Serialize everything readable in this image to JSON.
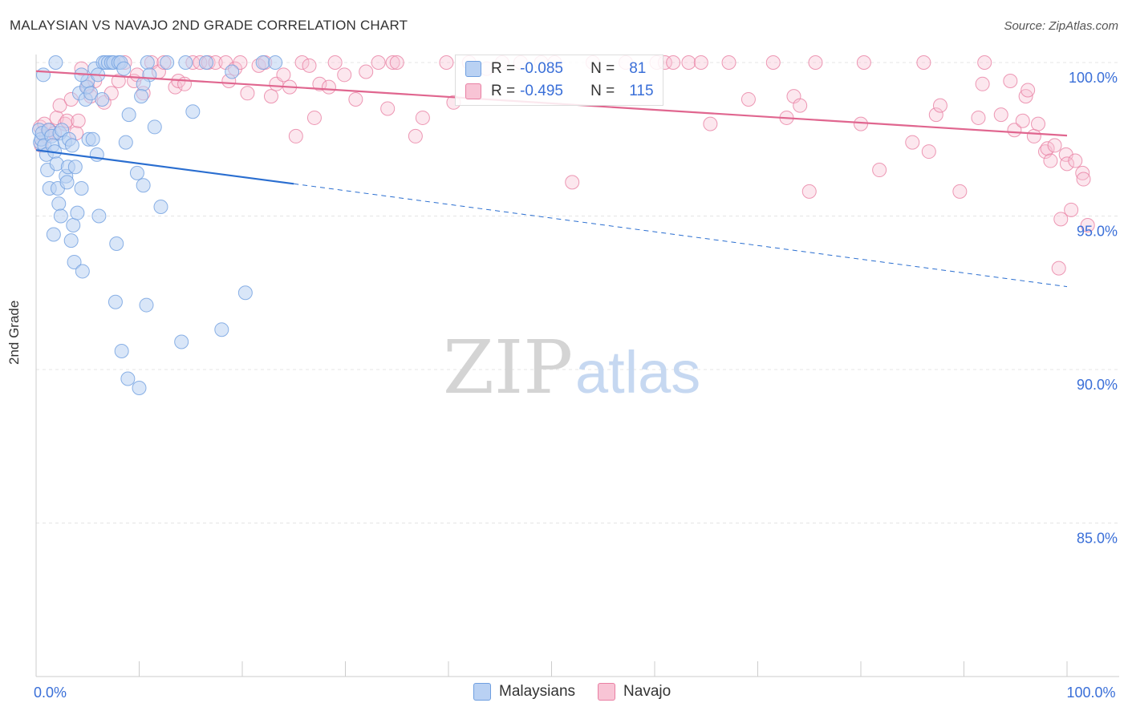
{
  "title": "MALAYSIAN VS NAVAJO 2ND GRADE CORRELATION CHART",
  "source": "Source: ZipAtlas.com",
  "watermark": {
    "zip": "ZIP",
    "atlas": "atlas"
  },
  "colors": {
    "blue": "#6f9fe0",
    "blue_fill": "#b9d1f3",
    "blue_line": "#2a6ed0",
    "pink": "#e97fa3",
    "pink_fill": "#f8c4d5",
    "pink_line": "#e0668f",
    "axis_text": "#3a6fd8",
    "grid": "#e4e4e4"
  },
  "legend": {
    "rows": [
      {
        "r_label": "R =",
        "r_value": "-0.085",
        "n_label": "N =",
        "n_value": "81",
        "series": "Malaysians"
      },
      {
        "r_label": "R =",
        "r_value": "-0.495",
        "n_label": "N =",
        "n_value": "115",
        "series": "Navajo"
      }
    ]
  },
  "bottom_legend": [
    "Malaysians",
    "Navajo"
  ],
  "chart_data": {
    "type": "scatter",
    "title": "MALAYSIAN VS NAVAJO 2ND GRADE CORRELATION CHART",
    "xlabel": "",
    "ylabel": "2nd Grade",
    "xlim": [
      0,
      100
    ],
    "ylim": [
      80.5,
      100.8
    ],
    "x_tick_labels": [
      {
        "value": 0,
        "label": "0.0%"
      },
      {
        "value": 100,
        "label": "100.0%"
      }
    ],
    "y_ticks": [
      {
        "value": 100,
        "label": "100.0%"
      },
      {
        "value": 95,
        "label": "95.0%"
      },
      {
        "value": 90,
        "label": "90.0%"
      },
      {
        "value": 85,
        "label": "85.0%"
      }
    ],
    "series": [
      {
        "name": "Malaysians",
        "r": -0.085,
        "n": 81,
        "trend": {
          "x0": 0,
          "y0": 97.15,
          "x1": 25,
          "y1": 96.05,
          "x_dash_end": 100,
          "y_dash_end": 92.7
        },
        "points": [
          [
            0.3,
            97.8
          ],
          [
            0.4,
            97.4
          ],
          [
            0.5,
            97.5
          ],
          [
            0.6,
            97.7
          ],
          [
            0.8,
            97.3
          ],
          [
            1.0,
            97.0
          ],
          [
            1.1,
            96.5
          ],
          [
            1.2,
            97.8
          ],
          [
            1.3,
            95.9
          ],
          [
            1.5,
            97.6
          ],
          [
            1.6,
            97.3
          ],
          [
            1.7,
            94.4
          ],
          [
            1.8,
            97.1
          ],
          [
            2.0,
            96.7
          ],
          [
            2.1,
            95.9
          ],
          [
            2.2,
            95.4
          ],
          [
            2.3,
            97.7
          ],
          [
            2.4,
            95.0
          ],
          [
            2.5,
            97.8
          ],
          [
            2.8,
            97.4
          ],
          [
            2.9,
            96.3
          ],
          [
            3.0,
            96.1
          ],
          [
            3.1,
            96.6
          ],
          [
            3.2,
            97.5
          ],
          [
            3.4,
            94.2
          ],
          [
            3.5,
            97.3
          ],
          [
            3.6,
            94.7
          ],
          [
            3.7,
            93.5
          ],
          [
            3.8,
            96.6
          ],
          [
            4.0,
            95.1
          ],
          [
            4.2,
            99.0
          ],
          [
            4.4,
            95.9
          ],
          [
            4.5,
            93.2
          ],
          [
            4.8,
            98.8
          ],
          [
            4.9,
            99.2
          ],
          [
            5.0,
            99.4
          ],
          [
            5.1,
            97.5
          ],
          [
            5.3,
            99.0
          ],
          [
            5.5,
            97.5
          ],
          [
            5.7,
            99.8
          ],
          [
            5.9,
            97.0
          ],
          [
            6.1,
            95.0
          ],
          [
            6.4,
            98.8
          ],
          [
            6.5,
            100.0
          ],
          [
            6.7,
            100.0
          ],
          [
            7.0,
            100.0
          ],
          [
            7.3,
            100.0
          ],
          [
            7.5,
            100.0
          ],
          [
            7.7,
            92.2
          ],
          [
            7.8,
            94.1
          ],
          [
            8.0,
            100.0
          ],
          [
            8.2,
            100.0
          ],
          [
            8.3,
            90.6
          ],
          [
            8.5,
            99.8
          ],
          [
            8.7,
            97.4
          ],
          [
            8.9,
            89.7
          ],
          [
            9.0,
            98.3
          ],
          [
            9.8,
            96.4
          ],
          [
            10.0,
            89.4
          ],
          [
            10.4,
            96.0
          ],
          [
            10.7,
            92.1
          ],
          [
            10.8,
            100.0
          ],
          [
            11.0,
            99.6
          ],
          [
            11.5,
            97.9
          ],
          [
            12.1,
            95.3
          ],
          [
            12.7,
            100.0
          ],
          [
            14.1,
            90.9
          ],
          [
            14.5,
            100.0
          ],
          [
            15.2,
            98.4
          ],
          [
            16.5,
            100.0
          ],
          [
            18.0,
            91.3
          ],
          [
            19.0,
            99.7
          ],
          [
            20.3,
            92.5
          ],
          [
            22.0,
            100.0
          ],
          [
            23.2,
            100.0
          ],
          [
            0.7,
            99.6
          ],
          [
            1.9,
            100.0
          ],
          [
            6.0,
            99.6
          ],
          [
            10.4,
            99.3
          ],
          [
            10.2,
            98.9
          ],
          [
            4.4,
            99.6
          ]
        ]
      },
      {
        "name": "Navajo",
        "r": -0.495,
        "n": 115,
        "trend": {
          "x0": 0,
          "y0": 99.72,
          "x1": 100,
          "y1": 97.62
        },
        "points": [
          [
            0.4,
            97.9
          ],
          [
            0.5,
            97.3
          ],
          [
            0.8,
            98.0
          ],
          [
            1.0,
            97.6
          ],
          [
            1.3,
            97.8
          ],
          [
            1.8,
            97.7
          ],
          [
            2.0,
            98.2
          ],
          [
            2.3,
            98.6
          ],
          [
            2.8,
            98.0
          ],
          [
            3.0,
            98.1
          ],
          [
            3.4,
            98.8
          ],
          [
            3.9,
            97.7
          ],
          [
            4.1,
            98.1
          ],
          [
            4.4,
            99.8
          ],
          [
            5.0,
            99.2
          ],
          [
            5.3,
            98.9
          ],
          [
            5.7,
            99.4
          ],
          [
            6.6,
            98.7
          ],
          [
            7.3,
            99.0
          ],
          [
            8.0,
            99.4
          ],
          [
            8.6,
            100.0
          ],
          [
            9.5,
            99.4
          ],
          [
            9.8,
            99.6
          ],
          [
            10.4,
            99.0
          ],
          [
            11.2,
            100.0
          ],
          [
            11.9,
            99.7
          ],
          [
            12.4,
            100.0
          ],
          [
            13.5,
            99.2
          ],
          [
            13.8,
            99.4
          ],
          [
            14.4,
            99.3
          ],
          [
            15.2,
            100.0
          ],
          [
            15.9,
            100.0
          ],
          [
            16.7,
            100.0
          ],
          [
            17.4,
            100.0
          ],
          [
            18.4,
            100.0
          ],
          [
            18.7,
            99.4
          ],
          [
            19.3,
            99.8
          ],
          [
            19.8,
            100.0
          ],
          [
            20.5,
            99.0
          ],
          [
            21.6,
            99.9
          ],
          [
            22.2,
            100.0
          ],
          [
            22.8,
            98.9
          ],
          [
            23.3,
            99.3
          ],
          [
            24.0,
            99.6
          ],
          [
            24.6,
            99.2
          ],
          [
            25.2,
            97.6
          ],
          [
            25.8,
            100.0
          ],
          [
            26.5,
            99.9
          ],
          [
            27.0,
            98.2
          ],
          [
            27.5,
            99.3
          ],
          [
            28.4,
            99.2
          ],
          [
            29.0,
            100.0
          ],
          [
            29.9,
            99.6
          ],
          [
            31.0,
            98.8
          ],
          [
            32.0,
            99.7
          ],
          [
            33.2,
            100.0
          ],
          [
            34.1,
            98.5
          ],
          [
            34.6,
            100.0
          ],
          [
            35.0,
            100.0
          ],
          [
            36.8,
            97.6
          ],
          [
            37.5,
            98.2
          ],
          [
            39.8,
            100.0
          ],
          [
            40.5,
            98.7
          ],
          [
            42.0,
            100.0
          ],
          [
            43.7,
            99.8
          ],
          [
            45.2,
            100.0
          ],
          [
            47.0,
            100.0
          ],
          [
            49.0,
            100.0
          ],
          [
            50.3,
            100.0
          ],
          [
            52.0,
            96.1
          ],
          [
            54.0,
            100.0
          ],
          [
            57.2,
            100.0
          ],
          [
            60.2,
            100.0
          ],
          [
            61.0,
            100.0
          ],
          [
            61.8,
            100.0
          ],
          [
            63.3,
            100.0
          ],
          [
            64.5,
            100.0
          ],
          [
            65.4,
            98.0
          ],
          [
            67.2,
            100.0
          ],
          [
            69.1,
            98.8
          ],
          [
            71.5,
            100.0
          ],
          [
            72.8,
            98.2
          ],
          [
            73.5,
            98.9
          ],
          [
            74.1,
            98.6
          ],
          [
            75.0,
            95.8
          ],
          [
            75.6,
            100.0
          ],
          [
            80.0,
            98.0
          ],
          [
            80.3,
            100.0
          ],
          [
            81.8,
            96.5
          ],
          [
            85.0,
            97.4
          ],
          [
            86.1,
            100.0
          ],
          [
            86.6,
            97.1
          ],
          [
            87.3,
            98.3
          ],
          [
            89.6,
            95.8
          ],
          [
            91.4,
            98.2
          ],
          [
            91.8,
            99.3
          ],
          [
            92.0,
            100.0
          ],
          [
            93.6,
            98.3
          ],
          [
            94.5,
            99.4
          ],
          [
            94.9,
            97.8
          ],
          [
            95.7,
            98.1
          ],
          [
            96.0,
            98.9
          ],
          [
            96.8,
            97.6
          ],
          [
            97.2,
            98.0
          ],
          [
            97.9,
            97.1
          ],
          [
            98.1,
            97.2
          ],
          [
            98.4,
            96.8
          ],
          [
            98.8,
            97.3
          ],
          [
            99.2,
            93.3
          ],
          [
            99.4,
            94.9
          ],
          [
            99.9,
            97.0
          ],
          [
            100.0,
            96.7
          ],
          [
            100.4,
            95.2
          ],
          [
            100.8,
            96.8
          ],
          [
            101.5,
            96.4
          ],
          [
            101.6,
            96.2
          ],
          [
            102.0,
            94.7
          ],
          [
            96.2,
            99.1
          ],
          [
            87.7,
            98.6
          ]
        ]
      }
    ]
  }
}
